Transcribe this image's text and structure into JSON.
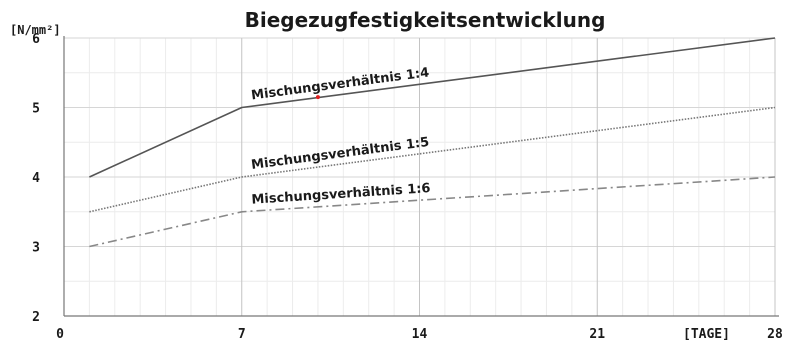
{
  "chart_data": {
    "type": "line",
    "title": "Biegezugfestigkeitsentwicklung",
    "ylabel": "[N/mm²]",
    "xlabel": "[TAGE]",
    "xlim": [
      0,
      28
    ],
    "ylim": [
      2,
      6
    ],
    "x_ticks": [
      0,
      7,
      14,
      21,
      28
    ],
    "y_ticks": [
      2,
      3,
      4,
      5,
      6
    ],
    "grid": true,
    "series": [
      {
        "name": "Mischungsverhältnis 1:4",
        "style": "solid",
        "color": "#555555",
        "x": [
          1,
          7,
          28
        ],
        "y": [
          4.0,
          5.0,
          6.0
        ]
      },
      {
        "name": "Mischungsverhältnis 1:5",
        "style": "dotted",
        "color": "#777777",
        "x": [
          1,
          7,
          28
        ],
        "y": [
          3.5,
          4.0,
          5.0
        ]
      },
      {
        "name": "Mischungsverhältnis 1:6",
        "style": "dashdot",
        "color": "#888888",
        "x": [
          1,
          7,
          28
        ],
        "y": [
          3.0,
          3.5,
          4.0
        ]
      }
    ],
    "marker": {
      "x": 10,
      "y": 5.15,
      "color": "#e02020"
    }
  }
}
